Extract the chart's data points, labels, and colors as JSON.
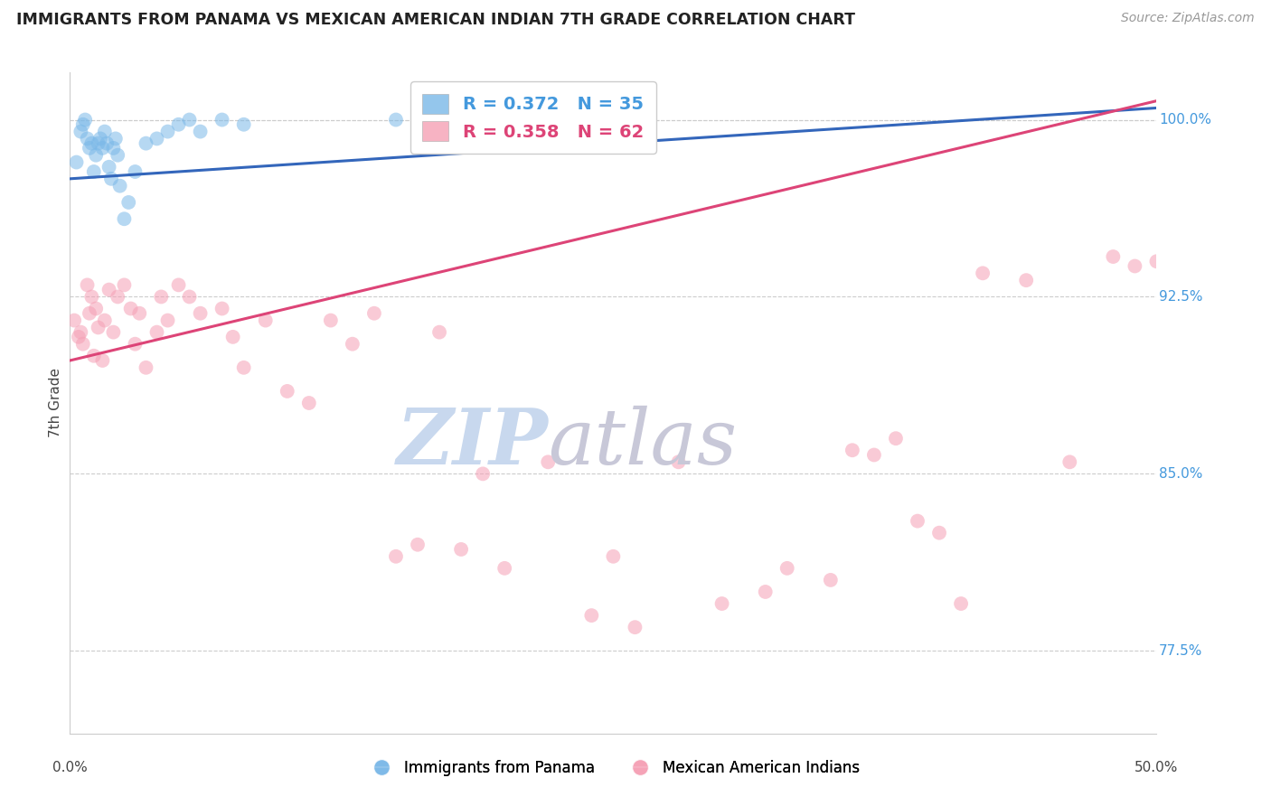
{
  "title": "IMMIGRANTS FROM PANAMA VS MEXICAN AMERICAN INDIAN 7TH GRADE CORRELATION CHART",
  "source": "Source: ZipAtlas.com",
  "ylabel": "7th Grade",
  "xlim": [
    0.0,
    50.0
  ],
  "ylim": [
    74.0,
    102.0
  ],
  "yticks": [
    77.5,
    85.0,
    92.5,
    100.0
  ],
  "ytick_labels": [
    "77.5%",
    "85.0%",
    "92.5%",
    "100.0%"
  ],
  "legend_blue_r": "R = 0.372",
  "legend_blue_n": "N = 35",
  "legend_pink_r": "R = 0.358",
  "legend_pink_n": "N = 62",
  "blue_color": "#7ab8e8",
  "pink_color": "#f5a0b5",
  "blue_line_color": "#3366bb",
  "pink_line_color": "#dd4477",
  "legend_text_blue": "#4499dd",
  "legend_text_pink": "#dd4477",
  "blue_points_x": [
    0.3,
    0.5,
    0.6,
    0.7,
    0.8,
    0.9,
    1.0,
    1.1,
    1.2,
    1.3,
    1.4,
    1.5,
    1.6,
    1.7,
    1.8,
    1.9,
    2.0,
    2.1,
    2.2,
    2.3,
    2.5,
    2.7,
    3.0,
    3.5,
    4.0,
    4.5,
    5.0,
    5.5,
    6.0,
    7.0,
    8.0,
    15.0,
    20.0,
    22.0,
    25.0
  ],
  "blue_points_y": [
    98.2,
    99.5,
    99.8,
    100.0,
    99.2,
    98.8,
    99.0,
    97.8,
    98.5,
    99.0,
    99.2,
    98.8,
    99.5,
    99.0,
    98.0,
    97.5,
    98.8,
    99.2,
    98.5,
    97.2,
    95.8,
    96.5,
    97.8,
    99.0,
    99.2,
    99.5,
    99.8,
    100.0,
    99.5,
    100.0,
    99.8,
    100.0,
    100.0,
    100.0,
    100.0
  ],
  "pink_points_x": [
    0.2,
    0.4,
    0.5,
    0.6,
    0.8,
    0.9,
    1.0,
    1.1,
    1.2,
    1.3,
    1.5,
    1.6,
    1.8,
    2.0,
    2.2,
    2.5,
    2.8,
    3.0,
    3.2,
    3.5,
    4.0,
    4.2,
    4.5,
    5.0,
    5.5,
    6.0,
    7.0,
    7.5,
    8.0,
    9.0,
    10.0,
    11.0,
    12.0,
    13.0,
    14.0,
    15.0,
    16.0,
    17.0,
    18.0,
    19.0,
    20.0,
    22.0,
    24.0,
    25.0,
    26.0,
    28.0,
    30.0,
    32.0,
    33.0,
    35.0,
    36.0,
    37.0,
    38.0,
    39.0,
    40.0,
    41.0,
    42.0,
    44.0,
    46.0,
    48.0,
    49.0,
    50.0
  ],
  "pink_points_y": [
    91.5,
    90.8,
    91.0,
    90.5,
    93.0,
    91.8,
    92.5,
    90.0,
    92.0,
    91.2,
    89.8,
    91.5,
    92.8,
    91.0,
    92.5,
    93.0,
    92.0,
    90.5,
    91.8,
    89.5,
    91.0,
    92.5,
    91.5,
    93.0,
    92.5,
    91.8,
    92.0,
    90.8,
    89.5,
    91.5,
    88.5,
    88.0,
    91.5,
    90.5,
    91.8,
    81.5,
    82.0,
    91.0,
    81.8,
    85.0,
    81.0,
    85.5,
    79.0,
    81.5,
    78.5,
    85.5,
    79.5,
    80.0,
    81.0,
    80.5,
    86.0,
    85.8,
    86.5,
    83.0,
    82.5,
    79.5,
    93.5,
    93.2,
    85.5,
    94.2,
    93.8,
    94.0
  ],
  "blue_line_x": [
    0.0,
    50.0
  ],
  "blue_line_y": [
    97.5,
    100.5
  ],
  "pink_line_x": [
    0.0,
    50.0
  ],
  "pink_line_y": [
    89.8,
    100.8
  ],
  "watermark_zip": "ZIP",
  "watermark_atlas": "atlas",
  "watermark_color_zip": "#c8d8ee",
  "watermark_color_atlas": "#c8c8d8",
  "background_color": "#ffffff",
  "grid_color": "#cccccc"
}
